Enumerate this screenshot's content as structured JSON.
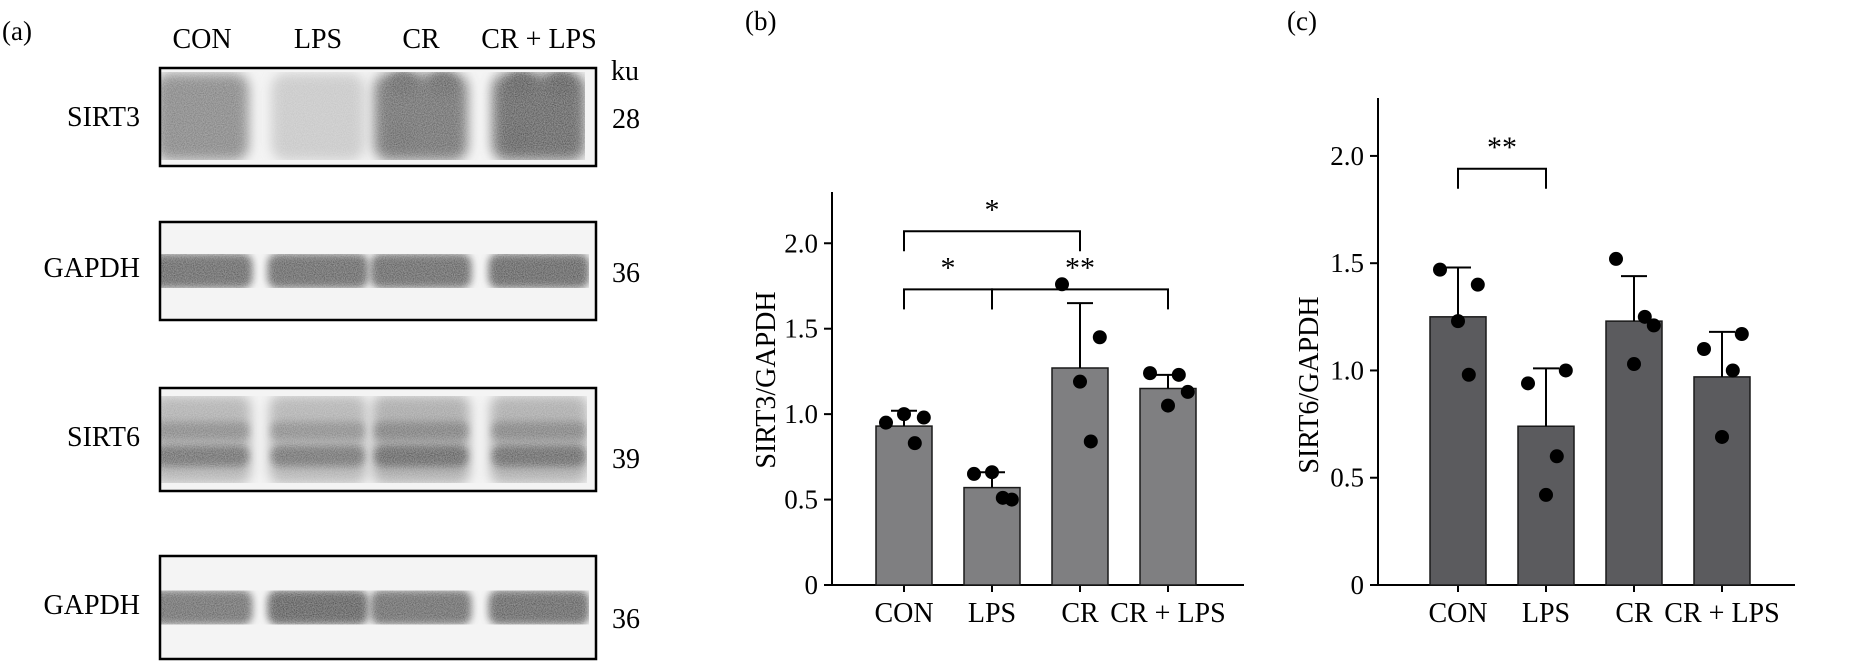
{
  "panel_a": {
    "letter": "(a)",
    "lane_labels": [
      "CON",
      "LPS",
      "CR",
      "CR + LPS"
    ],
    "unit_label": "ku",
    "blots": [
      {
        "protein": "SIRT3",
        "mw": "28",
        "intensities": [
          0.62,
          0.22,
          0.8,
          0.95
        ],
        "style": "diffuse"
      },
      {
        "protein": "GAPDH",
        "mw": "36",
        "intensities": [
          0.8,
          0.8,
          0.8,
          0.85
        ],
        "style": "band"
      },
      {
        "protein": "SIRT6",
        "mw": "39",
        "intensities": [
          0.72,
          0.7,
          0.82,
          0.78
        ],
        "style": "double"
      },
      {
        "protein": "GAPDH",
        "mw": "36",
        "intensities": [
          0.72,
          0.92,
          0.76,
          0.82
        ],
        "style": "band"
      }
    ]
  },
  "chart_data": [
    {
      "panel": "(b)",
      "type": "bar",
      "title": "",
      "xlabel": "",
      "ylabel": "SIRT3/GAPDH",
      "categories": [
        "CON",
        "LPS",
        "CR",
        "CR + LPS"
      ],
      "values": [
        0.93,
        0.57,
        1.27,
        1.15
      ],
      "errors": [
        0.09,
        0.09,
        0.38,
        0.08
      ],
      "points": [
        [
          0.95,
          0.98,
          1.0,
          0.83
        ],
        [
          0.65,
          0.5,
          0.66,
          0.51
        ],
        [
          1.76,
          1.45,
          1.19,
          0.84
        ],
        [
          1.24,
          1.13,
          1.05,
          1.23
        ]
      ],
      "ylim": [
        0,
        2.3
      ],
      "yticks": [
        "0",
        "0.5",
        "1.0",
        "1.5",
        "2.0"
      ],
      "bar_color": "#7f7f81",
      "significance": [
        {
          "from": 0,
          "to": 1,
          "label": "*",
          "y": 1.73
        },
        {
          "from": 1,
          "to": 3,
          "label": "**",
          "y": 1.73
        },
        {
          "from": 0,
          "to": 2,
          "label": "*",
          "y": 2.07
        }
      ]
    },
    {
      "panel": "(c)",
      "type": "bar",
      "title": "",
      "xlabel": "",
      "ylabel": "SIRT6/GAPDH",
      "categories": [
        "CON",
        "LPS",
        "CR",
        "CR + LPS"
      ],
      "values": [
        1.25,
        0.74,
        1.23,
        0.97
      ],
      "errors": [
        0.23,
        0.27,
        0.21,
        0.21
      ],
      "points": [
        [
          1.47,
          1.4,
          1.23,
          0.98
        ],
        [
          0.94,
          1.0,
          0.42,
          0.6
        ],
        [
          1.52,
          1.21,
          1.03,
          1.25
        ],
        [
          1.1,
          1.17,
          0.69,
          1.0
        ]
      ],
      "ylim": [
        0,
        2.27
      ],
      "yticks": [
        "0",
        "0.5",
        "1.0",
        "1.5",
        "2.0"
      ],
      "bar_color": "#5b5b5e",
      "significance": [
        {
          "from": 0,
          "to": 1,
          "label": "**",
          "y": 1.94
        }
      ]
    }
  ]
}
